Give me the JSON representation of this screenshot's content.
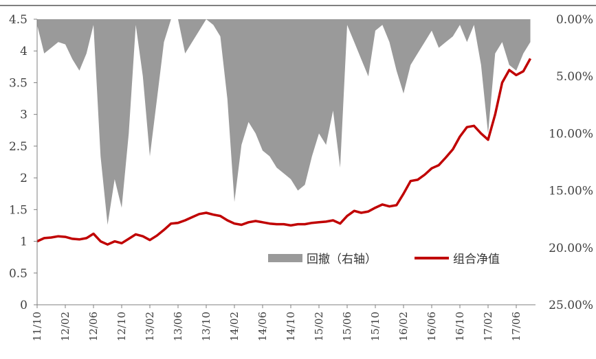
{
  "chart_data": {
    "type": "line",
    "title": "",
    "xlabel": "",
    "ylabel": "",
    "x_tick_labels": [
      "11/10",
      "12/02",
      "12/06",
      "12/10",
      "13/02",
      "13/06",
      "13/10",
      "14/02",
      "14/06",
      "14/10",
      "15/02",
      "15/06",
      "15/10",
      "16/02",
      "16/06",
      "16/10",
      "17/02",
      "17/06"
    ],
    "y_left": {
      "ticks": [
        "0",
        "0.5",
        "1",
        "1.5",
        "2",
        "2.5",
        "3",
        "3.5",
        "4",
        "4.5"
      ],
      "ylim": [
        0,
        4.5
      ]
    },
    "y_right": {
      "ticks": [
        "0.00%",
        "5.00%",
        "10.00%",
        "15.00%",
        "20.00%",
        "25.00%"
      ],
      "ylim": [
        0,
        25
      ],
      "inverted": true
    },
    "grid": false,
    "legend_position": "bottom-right inside",
    "series": [
      {
        "name": "回撤（右轴）",
        "chart": "area",
        "axis": "right",
        "color": "#9a9a9a",
        "x": [
          "11/10",
          "11/11",
          "11/12",
          "12/01",
          "12/02",
          "12/03",
          "12/04",
          "12/05",
          "12/06",
          "12/07",
          "12/08",
          "12/09",
          "12/10",
          "12/11",
          "12/12",
          "13/01",
          "13/02",
          "13/03",
          "13/04",
          "13/05",
          "13/06",
          "13/07",
          "13/08",
          "13/09",
          "13/10",
          "13/11",
          "13/12",
          "14/01",
          "14/02",
          "14/03",
          "14/04",
          "14/05",
          "14/06",
          "14/07",
          "14/08",
          "14/09",
          "14/10",
          "14/11",
          "14/12",
          "15/01",
          "15/02",
          "15/03",
          "15/04",
          "15/05",
          "15/06",
          "15/07",
          "15/08",
          "15/09",
          "15/10",
          "15/11",
          "15/12",
          "16/01",
          "16/02",
          "16/03",
          "16/04",
          "16/05",
          "16/06",
          "16/07",
          "16/08",
          "16/09",
          "16/10",
          "16/11",
          "16/12",
          "17/01",
          "17/02",
          "17/03",
          "17/04",
          "17/05",
          "17/06",
          "17/07",
          "17/08"
        ],
        "values": [
          0.5,
          3.0,
          2.5,
          2.0,
          2.2,
          3.5,
          4.5,
          3.0,
          0.5,
          12.0,
          18.0,
          14.0,
          16.5,
          10.0,
          0.5,
          5.0,
          12.0,
          7.0,
          2.0,
          0.0,
          0.0,
          3.0,
          2.0,
          1.0,
          0.0,
          0.5,
          1.5,
          7.0,
          16.0,
          11.0,
          9.0,
          10.0,
          11.5,
          12.0,
          13.0,
          13.5,
          14.0,
          15.0,
          14.5,
          12.0,
          10.0,
          11.0,
          8.0,
          13.0,
          0.5,
          2.0,
          3.5,
          5.0,
          1.0,
          0.5,
          2.0,
          4.5,
          6.5,
          4.0,
          3.0,
          2.0,
          1.0,
          2.5,
          2.0,
          1.5,
          0.5,
          2.0,
          0.5,
          4.0,
          10.0,
          3.0,
          2.0,
          4.0,
          4.5,
          3.0,
          2.0
        ]
      },
      {
        "name": "组合净值",
        "chart": "line",
        "axis": "left",
        "color": "#c00000",
        "x": [
          "11/10",
          "11/11",
          "11/12",
          "12/01",
          "12/02",
          "12/03",
          "12/04",
          "12/05",
          "12/06",
          "12/07",
          "12/08",
          "12/09",
          "12/10",
          "12/11",
          "12/12",
          "13/01",
          "13/02",
          "13/03",
          "13/04",
          "13/05",
          "13/06",
          "13/07",
          "13/08",
          "13/09",
          "13/10",
          "13/11",
          "13/12",
          "14/01",
          "14/02",
          "14/03",
          "14/04",
          "14/05",
          "14/06",
          "14/07",
          "14/08",
          "14/09",
          "14/10",
          "14/11",
          "14/12",
          "15/01",
          "15/02",
          "15/03",
          "15/04",
          "15/05",
          "15/06",
          "15/07",
          "15/08",
          "15/09",
          "15/10",
          "15/11",
          "15/12",
          "16/01",
          "16/02",
          "16/03",
          "16/04",
          "16/05",
          "16/06",
          "16/07",
          "16/08",
          "16/09",
          "16/10",
          "16/11",
          "16/12",
          "17/01",
          "17/02",
          "17/03",
          "17/04",
          "17/05",
          "17/06",
          "17/07",
          "17/08"
        ],
        "values": [
          1.0,
          1.05,
          1.06,
          1.08,
          1.07,
          1.04,
          1.03,
          1.05,
          1.12,
          1.0,
          0.95,
          1.0,
          0.97,
          1.04,
          1.11,
          1.08,
          1.02,
          1.09,
          1.18,
          1.28,
          1.29,
          1.33,
          1.38,
          1.43,
          1.45,
          1.42,
          1.4,
          1.33,
          1.28,
          1.26,
          1.3,
          1.32,
          1.3,
          1.28,
          1.27,
          1.27,
          1.25,
          1.27,
          1.27,
          1.29,
          1.3,
          1.31,
          1.33,
          1.28,
          1.4,
          1.48,
          1.45,
          1.47,
          1.53,
          1.58,
          1.55,
          1.57,
          1.75,
          1.95,
          1.97,
          2.05,
          2.15,
          2.2,
          2.32,
          2.45,
          2.65,
          2.8,
          2.82,
          2.7,
          2.6,
          3.0,
          3.5,
          3.7,
          3.62,
          3.68,
          3.88
        ]
      }
    ]
  }
}
